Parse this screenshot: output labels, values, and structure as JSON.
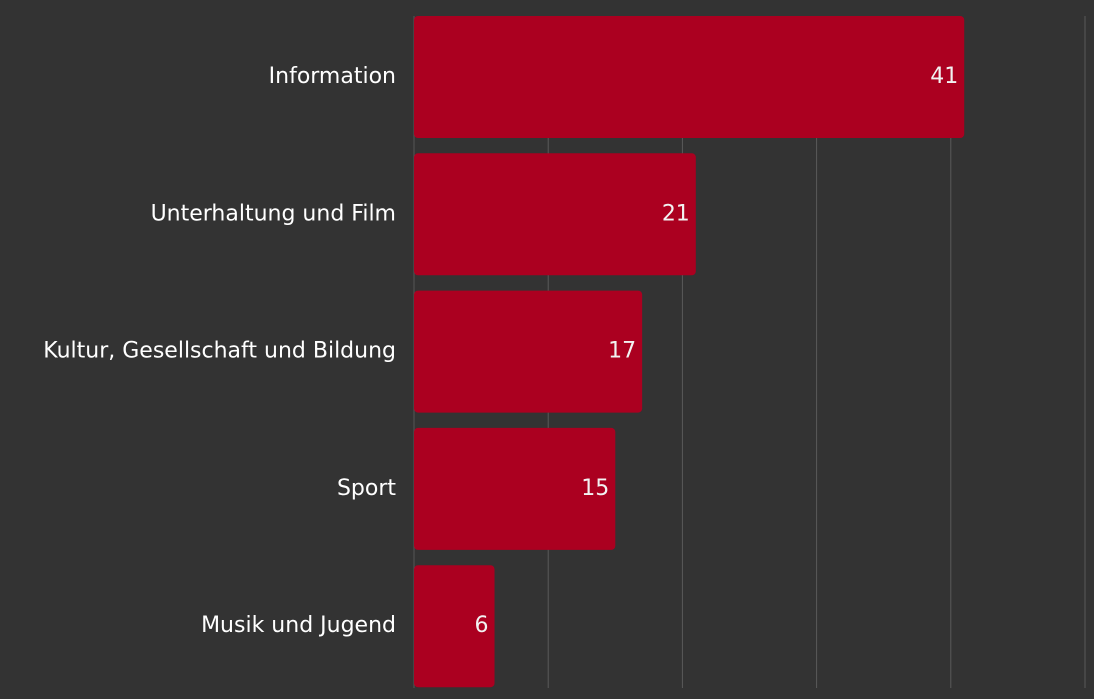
{
  "colors": {
    "background": "#333333",
    "bar": "#ab0020",
    "gridline": "#5a5a5a",
    "label_text": "#ffffff",
    "value_text": "#f2f2f2"
  },
  "chart_data": {
    "type": "bar",
    "orientation": "horizontal",
    "categories": [
      "Information",
      "Unterhaltung und Film",
      "Kultur, Gesellschaft und Bildung",
      "Sport",
      "Musik und Jugend"
    ],
    "values": [
      41,
      21,
      17,
      15,
      6
    ],
    "data_labels": [
      "41",
      "21",
      "17",
      "15",
      "6"
    ],
    "title": "",
    "xlabel": "",
    "ylabel": "",
    "xlim": [
      0,
      50
    ],
    "grid": true,
    "legend": "none"
  }
}
